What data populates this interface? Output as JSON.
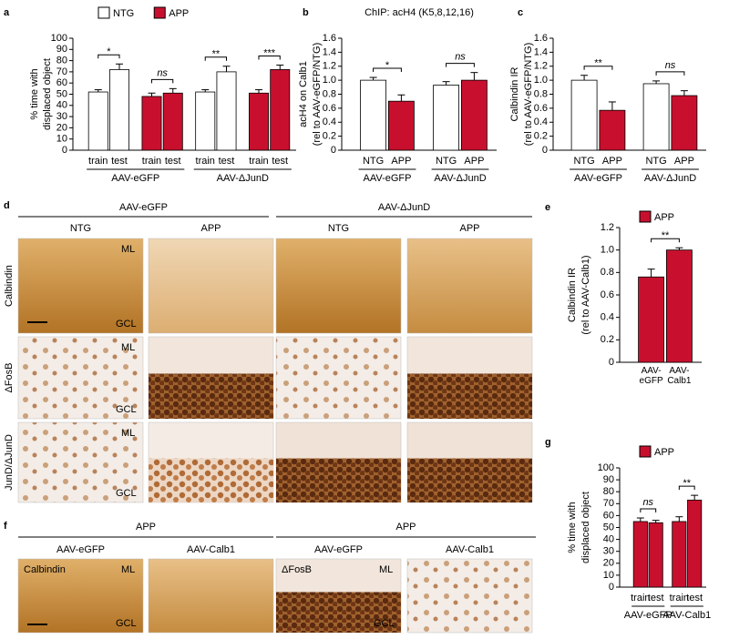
{
  "chart_data": [
    {
      "type": "bar",
      "panel": "a",
      "categories": [
        "train",
        "test",
        "train",
        "test",
        "train",
        "test",
        "train",
        "test"
      ],
      "series": [
        {
          "name": "NTG",
          "color": "#ffffff",
          "values": [
            52,
            72,
            null,
            null,
            52,
            70,
            null,
            null
          ],
          "errors": [
            2,
            5,
            null,
            null,
            2,
            5,
            null,
            null
          ]
        },
        {
          "name": "APP",
          "color": "#c8102e",
          "values": [
            null,
            null,
            48,
            51,
            null,
            null,
            51,
            72
          ],
          "errors": [
            null,
            null,
            3,
            4,
            null,
            null,
            3,
            4
          ]
        }
      ],
      "groups": [
        "AAV-eGFP",
        "AAV-ΔJunD"
      ],
      "significance": [
        "*",
        "ns",
        "**",
        "***"
      ],
      "ylabel": [
        "% time with",
        "displaced object"
      ],
      "ylim": [
        0,
        100
      ],
      "yticks": [
        0,
        10,
        20,
        30,
        40,
        50,
        60,
        70,
        80,
        90,
        100
      ]
    },
    {
      "type": "bar",
      "panel": "b",
      "title": "ChIP: acH4 (K5,8,12,16)",
      "categories": [
        "NTG",
        "APP",
        "NTG",
        "APP"
      ],
      "values": [
        1.0,
        0.7,
        0.93,
        1.0
      ],
      "errors": [
        0.04,
        0.09,
        0.05,
        0.11
      ],
      "colors": [
        "#ffffff",
        "#c8102e",
        "#ffffff",
        "#c8102e"
      ],
      "groups": [
        "AAV-eGFP",
        "AAV-ΔJunD"
      ],
      "significance": [
        "*",
        "ns"
      ],
      "ylabel": [
        "acH4 on Calb1",
        "(rel to AAV-eGFP/NTG)"
      ],
      "ylim": [
        0,
        1.6
      ],
      "yticks": [
        0,
        0.2,
        0.4,
        0.6,
        0.8,
        {
          "value": 1,
          "label": "1.0"
        },
        1.2,
        1.4,
        1.6
      ]
    },
    {
      "type": "bar",
      "panel": "c",
      "categories": [
        "NTG",
        "APP",
        "NTG",
        "APP"
      ],
      "values": [
        1.0,
        0.57,
        0.95,
        0.78
      ],
      "errors": [
        0.07,
        0.12,
        0.04,
        0.07
      ],
      "colors": [
        "#ffffff",
        "#c8102e",
        "#ffffff",
        "#c8102e"
      ],
      "groups": [
        "AAV-eGFP",
        "AAV-ΔJunD"
      ],
      "significance": [
        "**",
        "ns"
      ],
      "ylabel": [
        "Calbindin IR",
        "(rel to AAV-eGFP/NTG)"
      ],
      "ylim": [
        0,
        1.6
      ],
      "yticks": [
        0,
        0.2,
        0.4,
        0.6,
        0.8,
        {
          "value": 1,
          "label": "1.0"
        },
        1.2,
        1.4,
        1.6
      ]
    },
    {
      "type": "bar",
      "panel": "e",
      "categories": [
        "AAV-eGFP",
        "AAV-Calb1"
      ],
      "series": [
        {
          "name": "APP",
          "color": "#c8102e",
          "values": [
            0.76,
            1.0
          ],
          "errors": [
            0.07,
            0.02
          ]
        }
      ],
      "significance": [
        "**"
      ],
      "ylabel": [
        "Calbindin IR",
        "(rel to AAV-Calb1)"
      ],
      "ylim": [
        0,
        1.2
      ],
      "yticks": [
        0,
        0.2,
        0.4,
        0.6,
        0.8,
        {
          "value": 1,
          "label": "1.0"
        },
        1.2
      ]
    },
    {
      "type": "bar",
      "panel": "g",
      "categories": [
        "train",
        "test",
        "train",
        "test"
      ],
      "series": [
        {
          "name": "APP",
          "color": "#c8102e",
          "values": [
            55,
            54,
            55,
            73
          ],
          "errors": [
            3,
            2,
            4,
            4
          ]
        }
      ],
      "groups": [
        "AAV-eGFP",
        "AAV-Calb1"
      ],
      "significance": [
        "ns",
        "**"
      ],
      "ylabel": [
        "% time with",
        "displaced object"
      ],
      "ylim": [
        0,
        100
      ],
      "yticks": [
        0,
        10,
        20,
        30,
        40,
        50,
        60,
        70,
        80,
        90,
        100
      ]
    }
  ],
  "micrographs": [
    {
      "panel": "d",
      "groups": [
        "AAV-eGFP",
        "AAV-ΔJunD"
      ],
      "columns": [
        "NTG",
        "APP",
        "NTG",
        "APP"
      ],
      "rows": [
        "Calbindin",
        "ΔFosB",
        "JunD/ΔJunD"
      ],
      "layers": [
        "ML",
        "GCL"
      ]
    },
    {
      "panel": "f",
      "groups": [
        "APP",
        "APP"
      ],
      "columns": [
        "AAV-eGFP",
        "AAV-Calb1",
        "AAV-eGFP",
        "AAV-Calb1"
      ],
      "stains": [
        "Calbindin",
        "ΔFosB"
      ],
      "layers": [
        "ML",
        "GCL"
      ]
    }
  ]
}
